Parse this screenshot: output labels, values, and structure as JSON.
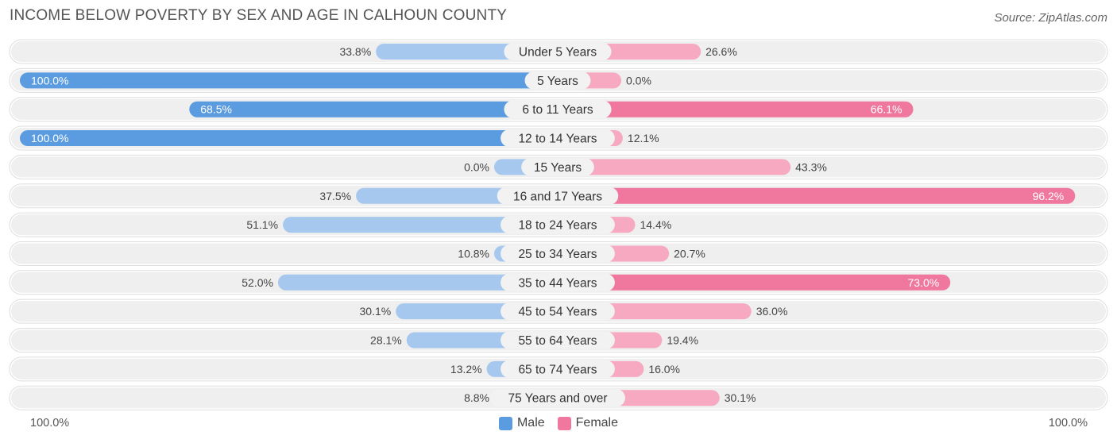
{
  "title": "INCOME BELOW POVERTY BY SEX AND AGE IN CALHOUN COUNTY",
  "source": "Source: ZipAtlas.com",
  "axis": {
    "left_label": "100.0%",
    "right_label": "100.0%"
  },
  "legend": {
    "male": "Male",
    "female": "Female"
  },
  "colors": {
    "male_strong": "#5b9bdf",
    "male_light": "#a7c8ee",
    "female_strong": "#f0789f",
    "female_light": "#f6a9c1",
    "row_bg": "#efefef"
  },
  "chart_data": {
    "type": "bar",
    "orientation": "horizontal-diverging",
    "title": "INCOME BELOW POVERTY BY SEX AND AGE IN CALHOUN COUNTY",
    "xlim": [
      -100,
      100
    ],
    "categories": [
      "Under 5 Years",
      "5 Years",
      "6 to 11 Years",
      "12 to 14 Years",
      "15 Years",
      "16 and 17 Years",
      "18 to 24 Years",
      "25 to 34 Years",
      "35 to 44 Years",
      "45 to 54 Years",
      "55 to 64 Years",
      "65 to 74 Years",
      "75 Years and over"
    ],
    "series": [
      {
        "name": "Male",
        "values": [
          33.8,
          100.0,
          68.5,
          100.0,
          0.0,
          37.5,
          51.1,
          10.8,
          52.0,
          30.1,
          28.1,
          13.2,
          8.8
        ],
        "labels": [
          "33.8%",
          "100.0%",
          "68.5%",
          "100.0%",
          "0.0%",
          "37.5%",
          "51.1%",
          "10.8%",
          "52.0%",
          "30.1%",
          "28.1%",
          "13.2%",
          "8.8%"
        ]
      },
      {
        "name": "Female",
        "values": [
          26.6,
          0.0,
          66.1,
          12.1,
          43.3,
          96.2,
          14.4,
          20.7,
          73.0,
          36.0,
          19.4,
          16.0,
          30.1
        ],
        "labels": [
          "26.6%",
          "0.0%",
          "66.1%",
          "12.1%",
          "43.3%",
          "96.2%",
          "14.4%",
          "20.7%",
          "73.0%",
          "36.0%",
          "19.4%",
          "16.0%",
          "30.1%"
        ]
      }
    ],
    "legend_position": "bottom"
  }
}
